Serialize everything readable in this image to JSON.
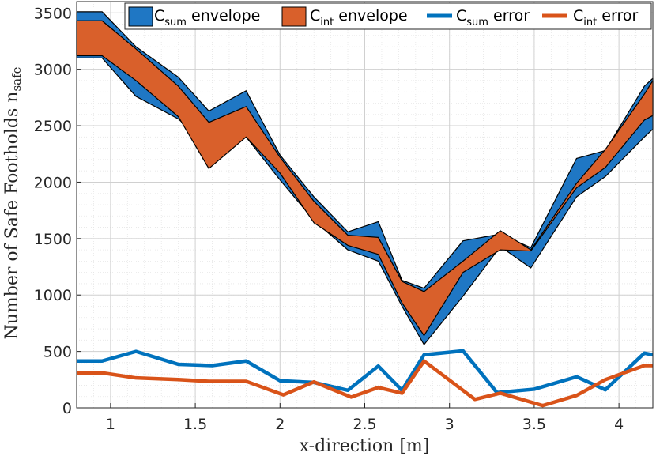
{
  "chart_data": {
    "type": "area",
    "xlabel": "x-direction [m]",
    "ylabel_main": "Number of Safe Footholds n",
    "ylabel_sub": "safe",
    "xlim": [
      0.8,
      4.2
    ],
    "ylim": [
      0,
      3600
    ],
    "xticks": [
      "1",
      "1.5",
      "2",
      "2.5",
      "3",
      "3.5",
      "4"
    ],
    "yticks": [
      "0",
      "500",
      "1000",
      "1500",
      "2000",
      "2500",
      "3000",
      "3500"
    ],
    "grid": true,
    "legend_position": "top",
    "legend": [
      {
        "main": "C",
        "sub": "sum",
        "rest": " envelope",
        "kind": "area",
        "color": "#1f77c4"
      },
      {
        "main": "C",
        "sub": "int",
        "rest": " envelope",
        "kind": "area",
        "color": "#d9602b"
      },
      {
        "main": "C",
        "sub": "sum",
        "rest": " error",
        "kind": "line",
        "color": "#0072bd"
      },
      {
        "main": "C",
        "sub": "int",
        "rest": " error",
        "kind": "line",
        "color": "#d95319"
      }
    ],
    "series": [
      {
        "name": "C_sum envelope",
        "kind": "envelope",
        "color": "#1f77c4",
        "x": [
          0.8,
          0.95,
          1.15,
          1.4,
          1.58,
          1.8,
          2.0,
          2.2,
          2.4,
          2.58,
          2.72,
          2.85,
          3.08,
          3.3,
          3.48,
          3.75,
          3.92,
          4.15,
          4.2
        ],
        "upper": [
          3510,
          3510,
          3200,
          2930,
          2630,
          2810,
          2240,
          1870,
          1560,
          1650,
          1130,
          1060,
          1480,
          1540,
          1420,
          2210,
          2280,
          2850,
          2920
        ],
        "lower": [
          3100,
          3100,
          2760,
          2560,
          2310,
          2400,
          2020,
          1660,
          1400,
          1300,
          900,
          560,
          990,
          1430,
          1240,
          1870,
          2050,
          2400,
          2470
        ]
      },
      {
        "name": "C_int envelope",
        "kind": "envelope",
        "color": "#d9602b",
        "x": [
          0.8,
          0.95,
          1.15,
          1.4,
          1.58,
          1.8,
          2.0,
          2.2,
          2.4,
          2.58,
          2.72,
          2.85,
          3.08,
          3.3,
          3.48,
          3.75,
          3.92,
          4.15,
          4.2
        ],
        "upper": [
          3430,
          3430,
          3180,
          2850,
          2530,
          2670,
          2220,
          1830,
          1530,
          1510,
          1120,
          1030,
          1300,
          1570,
          1400,
          1990,
          2290,
          2780,
          2900
        ],
        "lower": [
          3120,
          3120,
          2900,
          2580,
          2120,
          2400,
          2080,
          1640,
          1440,
          1360,
          930,
          640,
          1200,
          1400,
          1390,
          1950,
          2130,
          2550,
          2590
        ]
      },
      {
        "name": "C_sum error",
        "kind": "line",
        "color": "#0072bd",
        "x": [
          0.8,
          0.95,
          1.15,
          1.4,
          1.6,
          1.8,
          2.0,
          2.2,
          2.4,
          2.58,
          2.72,
          2.85,
          3.08,
          3.28,
          3.5,
          3.75,
          3.92,
          4.15,
          4.2
        ],
        "values": [
          415,
          415,
          500,
          385,
          375,
          415,
          240,
          225,
          155,
          370,
          155,
          470,
          505,
          135,
          165,
          275,
          160,
          485,
          470
        ]
      },
      {
        "name": "C_int error",
        "kind": "line",
        "color": "#d95319",
        "x": [
          0.8,
          0.95,
          1.15,
          1.4,
          1.58,
          1.8,
          2.02,
          2.2,
          2.42,
          2.58,
          2.72,
          2.85,
          3.15,
          3.3,
          3.55,
          3.75,
          3.92,
          4.15,
          4.2
        ],
        "values": [
          310,
          310,
          265,
          250,
          235,
          235,
          115,
          230,
          95,
          180,
          130,
          415,
          75,
          130,
          20,
          110,
          250,
          375,
          375
        ]
      }
    ]
  }
}
